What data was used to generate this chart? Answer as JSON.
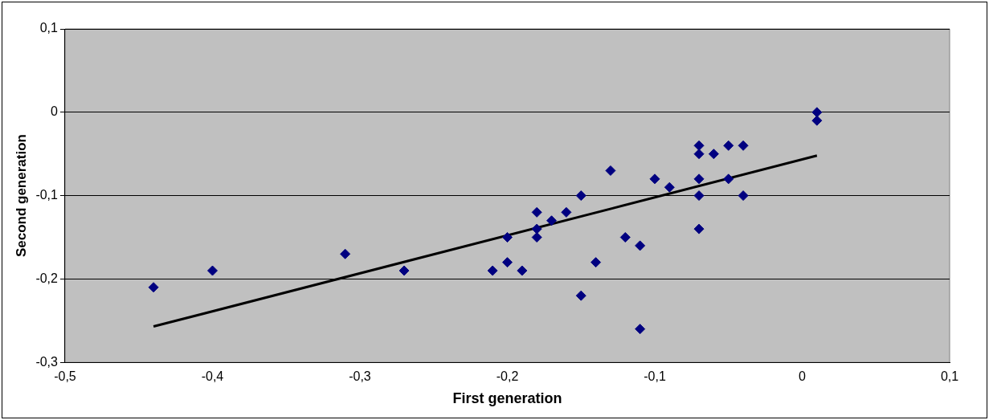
{
  "chart_data": {
    "type": "scatter",
    "xlabel": "First generation",
    "ylabel": "Second generation",
    "marker": "diamond",
    "grid": "y",
    "legend": false,
    "xlim": [
      -0.5,
      0.1
    ],
    "ylim": [
      -0.3,
      0.1
    ],
    "xticks": [
      {
        "value": -0.5,
        "label": "-0,5"
      },
      {
        "value": -0.4,
        "label": "-0,4"
      },
      {
        "value": -0.3,
        "label": "-0,3"
      },
      {
        "value": -0.2,
        "label": "-0,2"
      },
      {
        "value": -0.1,
        "label": "-0,1"
      },
      0,
      {
        "value": 0.1,
        "label": "0,1"
      }
    ],
    "yticks": [
      {
        "value": -0.3,
        "label": "-0,3"
      },
      {
        "value": -0.2,
        "label": "-0,2"
      },
      {
        "value": -0.1,
        "label": "-0,1"
      },
      0,
      {
        "value": 0.1,
        "label": "0,1"
      }
    ],
    "series": [
      {
        "color": "#000080",
        "x": [
          -0.44,
          -0.4,
          -0.31,
          -0.27,
          -0.21,
          -0.2,
          -0.2,
          -0.19,
          -0.18,
          -0.18,
          -0.18,
          -0.17,
          -0.16,
          -0.15,
          -0.15,
          -0.14,
          -0.13,
          -0.12,
          -0.11,
          -0.11,
          -0.1,
          -0.09,
          -0.07,
          -0.07,
          -0.07,
          -0.07,
          -0.07,
          -0.06,
          -0.05,
          -0.05,
          -0.04,
          -0.04,
          0.01,
          0.01
        ],
        "values": [
          -0.21,
          -0.19,
          -0.17,
          -0.19,
          -0.19,
          -0.15,
          -0.18,
          -0.19,
          -0.12,
          -0.14,
          -0.15,
          -0.13,
          -0.12,
          -0.1,
          -0.22,
          -0.18,
          -0.07,
          -0.15,
          -0.16,
          -0.26,
          -0.08,
          -0.09,
          -0.04,
          -0.05,
          -0.08,
          -0.1,
          -0.14,
          -0.05,
          -0.04,
          -0.08,
          -0.04,
          -0.1,
          0.0,
          -0.01
        ]
      },
      {
        "type": "line",
        "marker": "none",
        "color": "#000000",
        "x": [
          -0.44,
          0.01
        ],
        "values": [
          -0.257,
          -0.052
        ]
      }
    ]
  }
}
